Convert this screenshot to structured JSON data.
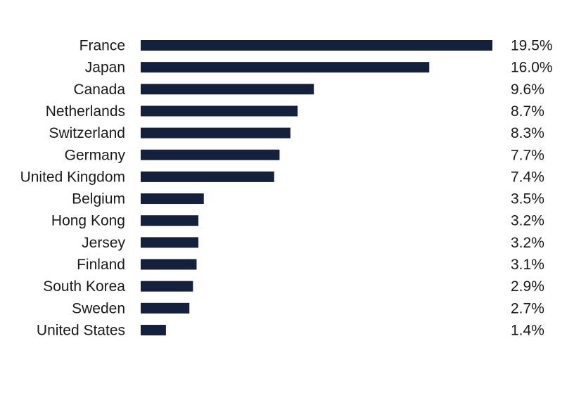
{
  "chart_data": {
    "type": "bar",
    "orientation": "horizontal",
    "categories": [
      "France",
      "Japan",
      "Canada",
      "Netherlands",
      "Switzerland",
      "Germany",
      "United Kingdom",
      "Belgium",
      "Hong Kong",
      "Jersey",
      "Finland",
      "South Korea",
      "Sweden",
      "United States"
    ],
    "values": [
      19.5,
      16.0,
      9.6,
      8.7,
      8.3,
      7.7,
      7.4,
      3.5,
      3.2,
      3.2,
      3.1,
      2.9,
      2.7,
      1.4
    ],
    "value_labels": [
      "19.5%",
      "16.0%",
      "9.6%",
      "8.7%",
      "8.3%",
      "7.7%",
      "7.4%",
      "3.5%",
      "3.2%",
      "3.2%",
      "3.1%",
      "2.9%",
      "2.7%",
      "1.4%"
    ],
    "title": "",
    "xlabel": "",
    "ylabel": "",
    "xlim": [
      0,
      19.5
    ],
    "grid": false,
    "legend": "none",
    "bar_color": "#14213d"
  }
}
